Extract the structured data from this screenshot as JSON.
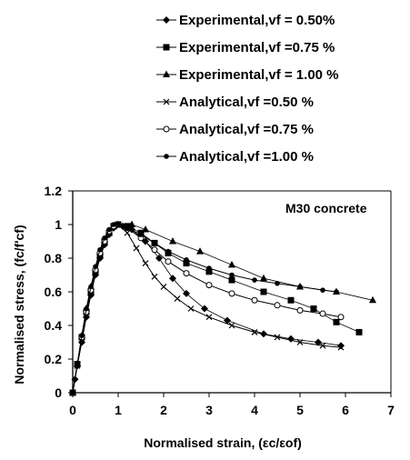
{
  "chart_data": {
    "type": "line",
    "annotation": "M30 concrete",
    "xlabel": "Normalised strain, (εc/εof)",
    "ylabel": "Normalised stress, (fc/f'cf)",
    "xlim": [
      0,
      7
    ],
    "ylim": [
      0,
      1.2
    ],
    "x_ticks": [
      "0",
      "1",
      "2",
      "3",
      "4",
      "5",
      "6",
      "7"
    ],
    "y_ticks": [
      "0",
      "0.2",
      "0.4",
      "0.6",
      "0.8",
      "1",
      "1.2"
    ],
    "grid": false,
    "legend_position": "top",
    "series": [
      {
        "name": "Experimental,vf = 0.50%",
        "marker": "diamond",
        "kind": "experimental",
        "points": [
          [
            0,
            0
          ],
          [
            0.05,
            0.08
          ],
          [
            0.1,
            0.16
          ],
          [
            0.2,
            0.3
          ],
          [
            0.3,
            0.45
          ],
          [
            0.4,
            0.58
          ],
          [
            0.5,
            0.7
          ],
          [
            0.6,
            0.8
          ],
          [
            0.7,
            0.88
          ],
          [
            0.8,
            0.94
          ],
          [
            0.9,
            0.98
          ],
          [
            1.0,
            1.0
          ],
          [
            1.1,
            0.99
          ],
          [
            1.3,
            0.97
          ],
          [
            1.6,
            0.9
          ],
          [
            1.9,
            0.8
          ],
          [
            2.2,
            0.68
          ],
          [
            2.5,
            0.59
          ],
          [
            2.9,
            0.5
          ],
          [
            3.4,
            0.43
          ],
          [
            4.2,
            0.35
          ],
          [
            4.8,
            0.32
          ],
          [
            5.4,
            0.3
          ],
          [
            5.9,
            0.28
          ]
        ]
      },
      {
        "name": "Experimental,vf =0.75 %",
        "marker": "square",
        "kind": "experimental",
        "points": [
          [
            0,
            0
          ],
          [
            0.1,
            0.17
          ],
          [
            0.2,
            0.33
          ],
          [
            0.3,
            0.48
          ],
          [
            0.4,
            0.6
          ],
          [
            0.5,
            0.72
          ],
          [
            0.6,
            0.82
          ],
          [
            0.7,
            0.9
          ],
          [
            0.8,
            0.95
          ],
          [
            0.9,
            0.99
          ],
          [
            1.0,
            1.0
          ],
          [
            1.2,
            0.99
          ],
          [
            1.5,
            0.95
          ],
          [
            1.8,
            0.89
          ],
          [
            2.1,
            0.83
          ],
          [
            2.5,
            0.77
          ],
          [
            3.0,
            0.72
          ],
          [
            3.5,
            0.67
          ],
          [
            4.2,
            0.6
          ],
          [
            4.8,
            0.55
          ],
          [
            5.3,
            0.5
          ],
          [
            5.8,
            0.42
          ],
          [
            6.3,
            0.36
          ]
        ]
      },
      {
        "name": "Experimental,vf = 1.00 %",
        "marker": "triangle",
        "kind": "experimental",
        "points": [
          [
            0,
            0
          ],
          [
            0.1,
            0.17
          ],
          [
            0.2,
            0.34
          ],
          [
            0.3,
            0.5
          ],
          [
            0.4,
            0.63
          ],
          [
            0.5,
            0.74
          ],
          [
            0.6,
            0.84
          ],
          [
            0.7,
            0.91
          ],
          [
            0.8,
            0.96
          ],
          [
            0.9,
            0.99
          ],
          [
            1.0,
            1.0
          ],
          [
            1.3,
            1.0
          ],
          [
            1.6,
            0.97
          ],
          [
            2.2,
            0.9
          ],
          [
            2.8,
            0.84
          ],
          [
            3.5,
            0.76
          ],
          [
            4.2,
            0.68
          ],
          [
            5.0,
            0.63
          ],
          [
            5.8,
            0.6
          ],
          [
            6.6,
            0.55
          ]
        ]
      },
      {
        "name": "Analytical,vf =0.50 %",
        "marker": "cross",
        "kind": "analytical",
        "points": [
          [
            0,
            0
          ],
          [
            0.1,
            0.16
          ],
          [
            0.2,
            0.31
          ],
          [
            0.3,
            0.46
          ],
          [
            0.4,
            0.59
          ],
          [
            0.5,
            0.71
          ],
          [
            0.6,
            0.81
          ],
          [
            0.7,
            0.89
          ],
          [
            0.8,
            0.95
          ],
          [
            0.9,
            0.99
          ],
          [
            1.0,
            1.0
          ],
          [
            1.2,
            0.95
          ],
          [
            1.4,
            0.86
          ],
          [
            1.6,
            0.77
          ],
          [
            1.8,
            0.69
          ],
          [
            2.0,
            0.63
          ],
          [
            2.3,
            0.56
          ],
          [
            2.6,
            0.5
          ],
          [
            3.0,
            0.45
          ],
          [
            3.5,
            0.4
          ],
          [
            4.0,
            0.36
          ],
          [
            4.5,
            0.33
          ],
          [
            5.0,
            0.3
          ],
          [
            5.5,
            0.28
          ],
          [
            5.9,
            0.27
          ]
        ]
      },
      {
        "name": "Analytical,vf =0.75 %",
        "marker": "circle",
        "kind": "analytical",
        "points": [
          [
            0,
            0
          ],
          [
            0.1,
            0.17
          ],
          [
            0.2,
            0.33
          ],
          [
            0.3,
            0.48
          ],
          [
            0.4,
            0.61
          ],
          [
            0.5,
            0.73
          ],
          [
            0.6,
            0.83
          ],
          [
            0.7,
            0.9
          ],
          [
            0.8,
            0.96
          ],
          [
            0.9,
            0.99
          ],
          [
            1.0,
            1.0
          ],
          [
            1.2,
            0.98
          ],
          [
            1.5,
            0.92
          ],
          [
            1.8,
            0.85
          ],
          [
            2.1,
            0.78
          ],
          [
            2.5,
            0.71
          ],
          [
            3.0,
            0.64
          ],
          [
            3.5,
            0.59
          ],
          [
            4.0,
            0.55
          ],
          [
            4.5,
            0.52
          ],
          [
            5.0,
            0.49
          ],
          [
            5.5,
            0.47
          ],
          [
            5.9,
            0.45
          ]
        ]
      },
      {
        "name": "Analytical,vf =1.00 %",
        "marker": "dot",
        "kind": "analytical",
        "points": [
          [
            0,
            0
          ],
          [
            0.1,
            0.17
          ],
          [
            0.2,
            0.34
          ],
          [
            0.3,
            0.5
          ],
          [
            0.4,
            0.63
          ],
          [
            0.5,
            0.75
          ],
          [
            0.6,
            0.85
          ],
          [
            0.7,
            0.92
          ],
          [
            0.8,
            0.97
          ],
          [
            0.9,
            1.0
          ],
          [
            1.0,
            1.0
          ],
          [
            1.2,
            0.98
          ],
          [
            1.5,
            0.94
          ],
          [
            1.8,
            0.89
          ],
          [
            2.1,
            0.84
          ],
          [
            2.5,
            0.79
          ],
          [
            3.0,
            0.74
          ],
          [
            3.5,
            0.7
          ],
          [
            4.0,
            0.67
          ],
          [
            4.5,
            0.65
          ],
          [
            5.0,
            0.63
          ],
          [
            5.5,
            0.61
          ],
          [
            5.8,
            0.6
          ]
        ]
      }
    ]
  }
}
